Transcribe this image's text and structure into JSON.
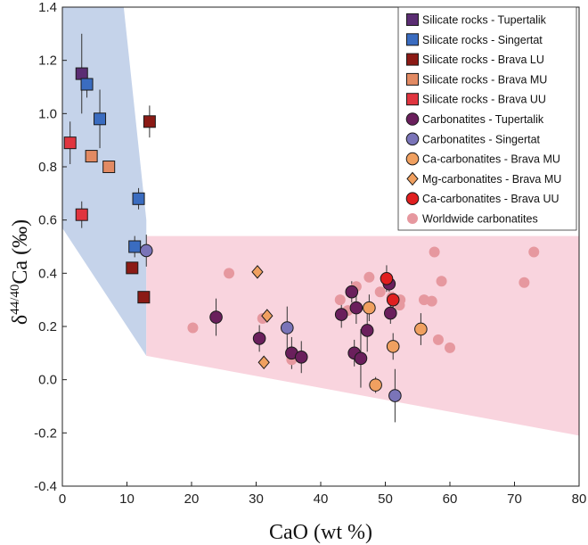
{
  "chart_data": {
    "type": "scatter",
    "xlabel": "CaO (wt %)",
    "ylabel_prefix": "δ",
    "ylabel_sup": "44/40",
    "ylabel_main": "Ca (‰)",
    "xlim": [
      0,
      80
    ],
    "ylim": [
      -0.4,
      1.4
    ],
    "xticks": [
      "0",
      "10",
      "20",
      "30",
      "40",
      "50",
      "60",
      "70",
      "80"
    ],
    "yticks": [
      "-0.4",
      "-0.2",
      "0.0",
      "0.2",
      "0.4",
      "0.6",
      "0.8",
      "1.0",
      "1.2",
      "1.4"
    ],
    "regions": [
      {
        "name": "silicate-field",
        "color": "#c5d3ea",
        "points": [
          [
            0,
            1.4
          ],
          [
            9.5,
            1.4
          ],
          [
            13,
            0.6
          ],
          [
            13,
            0.09
          ],
          [
            0,
            0.57
          ]
        ]
      },
      {
        "name": "carbonatite-field",
        "color": "#f9d4de",
        "points": [
          [
            13,
            0.54
          ],
          [
            80,
            0.54
          ],
          [
            80,
            -0.21
          ],
          [
            13,
            0.09
          ]
        ]
      }
    ],
    "series": [
      {
        "name": "Silicate rocks - Tupertalik",
        "marker": "square",
        "color": "#5b2d73",
        "points": [
          {
            "x": 3,
            "y": 1.15,
            "err": 0.15
          }
        ]
      },
      {
        "name": "Silicate rocks - Singertat",
        "marker": "square",
        "color": "#3a6cc0",
        "points": [
          {
            "x": 3.8,
            "y": 1.11,
            "err": 0.05
          },
          {
            "x": 5.8,
            "y": 0.98,
            "err": 0.11
          },
          {
            "x": 11.8,
            "y": 0.68,
            "err": 0.04
          },
          {
            "x": 11.2,
            "y": 0.5,
            "err": 0.04
          }
        ]
      },
      {
        "name": "Silicate rocks - Brava LU",
        "marker": "square",
        "color": "#8b1a15",
        "points": [
          {
            "x": 13.5,
            "y": 0.97,
            "err": 0.06
          },
          {
            "x": 10.8,
            "y": 0.42,
            "err": 0.02
          },
          {
            "x": 12.6,
            "y": 0.31,
            "err": 0.01
          }
        ]
      },
      {
        "name": "Silicate rocks - Brava MU",
        "marker": "square",
        "color": "#e28a63",
        "points": [
          {
            "x": 4.5,
            "y": 0.84,
            "err": 0.02
          },
          {
            "x": 7.2,
            "y": 0.8,
            "err": 0.01
          }
        ]
      },
      {
        "name": "Silicate rocks - Brava UU",
        "marker": "square",
        "color": "#e0353f",
        "points": [
          {
            "x": 1.2,
            "y": 0.89,
            "err": 0.08
          },
          {
            "x": 3,
            "y": 0.62,
            "err": 0.05
          }
        ]
      },
      {
        "name": "Carbonatites - Tupertalik",
        "marker": "circle",
        "color": "#6a1f5c",
        "points": [
          {
            "x": 23.8,
            "y": 0.235,
            "err": 0.07
          },
          {
            "x": 30.5,
            "y": 0.155,
            "err": 0.05
          },
          {
            "x": 35.5,
            "y": 0.1,
            "err": 0.06
          },
          {
            "x": 37,
            "y": 0.085,
            "err": 0.06
          },
          {
            "x": 43.2,
            "y": 0.245,
            "err": 0.05
          },
          {
            "x": 44.8,
            "y": 0.33,
            "err": 0.04
          },
          {
            "x": 45.5,
            "y": 0.27,
            "err": 0.06
          },
          {
            "x": 45.2,
            "y": 0.1,
            "err": 0.05
          },
          {
            "x": 46.2,
            "y": 0.08,
            "err": 0.11
          },
          {
            "x": 47.2,
            "y": 0.185,
            "err": 0.08
          },
          {
            "x": 50.8,
            "y": 0.25,
            "err": 0.04
          },
          {
            "x": 50.6,
            "y": 0.36,
            "err": 0.03
          }
        ]
      },
      {
        "name": "Carbonatites - Singertat",
        "marker": "circle",
        "color": "#7a74b8",
        "points": [
          {
            "x": 13,
            "y": 0.485,
            "err": 0.06
          },
          {
            "x": 34.8,
            "y": 0.195,
            "err": 0.08
          },
          {
            "x": 51.5,
            "y": -0.06,
            "err": 0.1
          }
        ]
      },
      {
        "name": "Ca-carbonatites - Brava MU",
        "marker": "circle",
        "color": "#f0a060",
        "points": [
          {
            "x": 47.5,
            "y": 0.27,
            "err": 0.05
          },
          {
            "x": 48.5,
            "y": -0.02,
            "err": 0.03
          },
          {
            "x": 51.2,
            "y": 0.125,
            "err": 0.05
          },
          {
            "x": 55.5,
            "y": 0.19,
            "err": 0.06
          }
        ]
      },
      {
        "name": "Mg-carbonatites - Brava MU",
        "marker": "diamond",
        "color": "#f0a060",
        "points": [
          {
            "x": 30.2,
            "y": 0.405,
            "err": 0.02
          },
          {
            "x": 31.7,
            "y": 0.24,
            "err": 0.02
          },
          {
            "x": 31.2,
            "y": 0.065,
            "err": 0.01
          }
        ]
      },
      {
        "name": "Ca-carbonatites - Brava UU",
        "marker": "circle",
        "color": "#e01f20",
        "points": [
          {
            "x": 50.2,
            "y": 0.38,
            "err": 0.05
          },
          {
            "x": 51.2,
            "y": 0.3,
            "err": 0.03
          }
        ]
      },
      {
        "name": "Worldwide carbonatites",
        "marker": "dot",
        "color": "#e6989f",
        "points": [
          {
            "x": 20.2,
            "y": 0.195
          },
          {
            "x": 25.8,
            "y": 0.4
          },
          {
            "x": 31,
            "y": 0.23
          },
          {
            "x": 35.5,
            "y": 0.075
          },
          {
            "x": 43,
            "y": 0.3
          },
          {
            "x": 44.2,
            "y": 0.26
          },
          {
            "x": 45.5,
            "y": 0.35
          },
          {
            "x": 47.5,
            "y": 0.385
          },
          {
            "x": 49.2,
            "y": 0.33
          },
          {
            "x": 51,
            "y": 0.31
          },
          {
            "x": 52.3,
            "y": 0.3
          },
          {
            "x": 52.2,
            "y": 0.28
          },
          {
            "x": 56,
            "y": 0.3
          },
          {
            "x": 57.2,
            "y": 0.295
          },
          {
            "x": 57.6,
            "y": 0.48
          },
          {
            "x": 58.2,
            "y": 0.15
          },
          {
            "x": 58.7,
            "y": 0.37
          },
          {
            "x": 60,
            "y": 0.12
          },
          {
            "x": 71.5,
            "y": 0.365
          },
          {
            "x": 73,
            "y": 0.48
          }
        ]
      }
    ]
  }
}
